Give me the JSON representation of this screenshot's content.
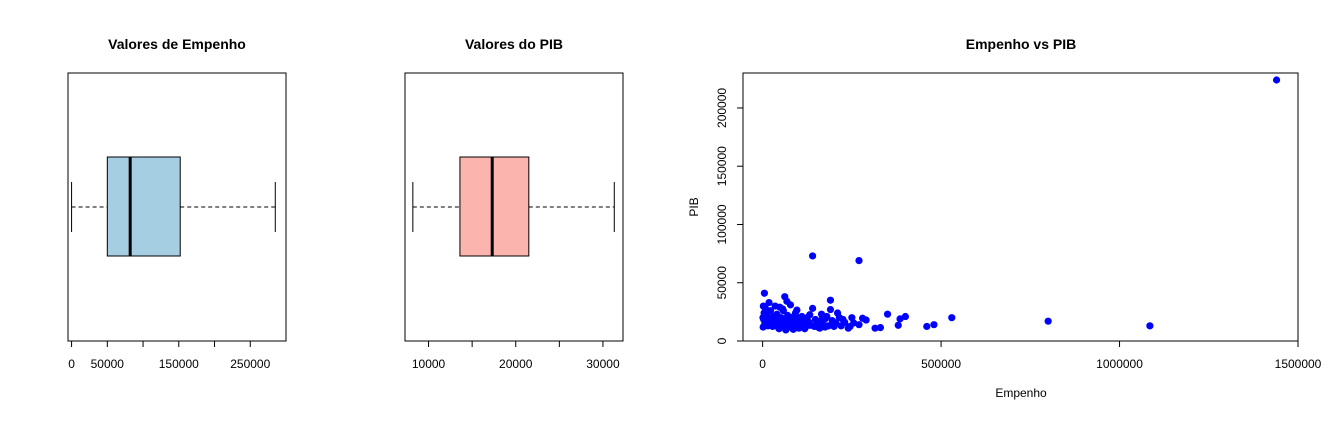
{
  "chart_data": [
    {
      "type": "boxplot",
      "title": "Valores de Empenho",
      "orientation": "horizontal",
      "color": "#a6cee3",
      "stats": {
        "whisker_low": 0,
        "q1": 50000,
        "median": 82000,
        "q3": 152000,
        "whisker_high": 285000
      },
      "xlim": [
        -5000,
        300000
      ],
      "tick_values": [
        0,
        50000,
        100000,
        150000,
        200000,
        250000
      ],
      "tick_labels": [
        "0",
        "50000",
        "",
        "150000",
        "",
        "250000"
      ]
    },
    {
      "type": "boxplot",
      "title": "Valores do PIB",
      "orientation": "horizontal",
      "color": "#fbb4ae",
      "stats": {
        "whisker_low": 8200,
        "q1": 13600,
        "median": 17300,
        "q3": 21500,
        "whisker_high": 31300
      },
      "xlim": [
        7300,
        32300
      ],
      "tick_values": [
        10000,
        15000,
        20000,
        25000,
        30000
      ],
      "tick_labels": [
        "10000",
        "",
        "20000",
        "",
        "30000"
      ]
    },
    {
      "type": "scatter",
      "title": "Empenho vs PIB",
      "xlabel": "Empenho",
      "ylabel": "PIB",
      "color": "#0000ff",
      "xlim": [
        -55000,
        1500000
      ],
      "ylim": [
        0,
        230000
      ],
      "x_ticks": [
        0,
        500000,
        1000000,
        1500000
      ],
      "x_tick_labels": [
        "0",
        "500000",
        "1000000",
        "1500000"
      ],
      "y_ticks": [
        0,
        50000,
        100000,
        150000,
        200000
      ],
      "y_tick_labels": [
        "0",
        "50000",
        "100000",
        "150000",
        "200000"
      ],
      "points": [
        [
          1440000,
          224000
        ],
        [
          140000,
          73000
        ],
        [
          270000,
          69000
        ],
        [
          1085000,
          13000
        ],
        [
          800000,
          17000
        ],
        [
          530000,
          20000
        ],
        [
          480000,
          14000
        ],
        [
          460000,
          12500
        ],
        [
          400000,
          21000
        ],
        [
          385000,
          19000
        ],
        [
          380000,
          13500
        ],
        [
          350000,
          23000
        ],
        [
          330000,
          11500
        ],
        [
          315000,
          11000
        ],
        [
          290000,
          18000
        ],
        [
          270000,
          14000
        ],
        [
          255000,
          15500
        ],
        [
          250000,
          20000
        ],
        [
          240000,
          11000
        ],
        [
          230000,
          16000
        ],
        [
          220000,
          13000
        ],
        [
          215000,
          20000
        ],
        [
          210000,
          24000
        ],
        [
          200000,
          12500
        ],
        [
          195000,
          17500
        ],
        [
          190000,
          27000
        ],
        [
          190000,
          35000
        ],
        [
          185000,
          13000
        ],
        [
          180000,
          21000
        ],
        [
          175000,
          19000
        ],
        [
          170000,
          14500
        ],
        [
          165000,
          23000
        ],
        [
          160000,
          17000
        ],
        [
          155000,
          12000
        ],
        [
          150000,
          14000
        ],
        [
          148000,
          18500
        ],
        [
          140000,
          28000
        ],
        [
          135000,
          13500
        ],
        [
          130000,
          16000
        ],
        [
          125000,
          20000
        ],
        [
          120000,
          12000
        ],
        [
          115000,
          18000
        ],
        [
          112000,
          15000
        ],
        [
          110000,
          21000
        ],
        [
          105000,
          13000
        ],
        [
          100000,
          17000
        ],
        [
          98000,
          19500
        ],
        [
          95000,
          11500
        ],
        [
          92000,
          24000
        ],
        [
          90000,
          14000
        ],
        [
          88000,
          16500
        ],
        [
          85000,
          20500
        ],
        [
          82000,
          13000
        ],
        [
          80000,
          18000
        ],
        [
          78000,
          31000
        ],
        [
          75000,
          12000
        ],
        [
          72000,
          15500
        ],
        [
          70000,
          22000
        ],
        [
          68000,
          34000
        ],
        [
          65000,
          9500
        ],
        [
          62000,
          13500
        ],
        [
          60000,
          17500
        ],
        [
          58000,
          26000
        ],
        [
          55000,
          12000
        ],
        [
          52000,
          20000
        ],
        [
          50000,
          15000
        ],
        [
          48000,
          29000
        ],
        [
          45000,
          11000
        ],
        [
          42000,
          18000
        ],
        [
          40000,
          23000
        ],
        [
          38000,
          14000
        ],
        [
          35000,
          30000
        ],
        [
          33000,
          16000
        ],
        [
          30000,
          21000
        ],
        [
          28000,
          12500
        ],
        [
          25000,
          19000
        ],
        [
          22000,
          26000
        ],
        [
          20000,
          15500
        ],
        [
          18000,
          33000
        ],
        [
          15000,
          13000
        ],
        [
          12000,
          22000
        ],
        [
          10000,
          17000
        ],
        [
          8000,
          28000
        ],
        [
          6000,
          14500
        ],
        [
          5000,
          41000
        ],
        [
          4000,
          24000
        ],
        [
          3000,
          18500
        ],
        [
          2000,
          30000
        ],
        [
          1500,
          12000
        ],
        [
          1000,
          20000
        ],
        [
          62000,
          38000
        ],
        [
          56000,
          27500
        ],
        [
          46000,
          10500
        ],
        [
          86000,
          10000
        ],
        [
          102000,
          11000
        ],
        [
          118000,
          10500
        ],
        [
          128000,
          13500
        ],
        [
          145000,
          12500
        ],
        [
          160000,
          11000
        ],
        [
          175000,
          12000
        ],
        [
          205000,
          15500
        ],
        [
          225000,
          18500
        ],
        [
          245000,
          12500
        ],
        [
          280000,
          19500
        ],
        [
          168000,
          21500
        ],
        [
          132000,
          22500
        ],
        [
          96000,
          26500
        ],
        [
          74000,
          20000
        ],
        [
          66000,
          14000
        ],
        [
          36000,
          19500
        ]
      ]
    }
  ]
}
